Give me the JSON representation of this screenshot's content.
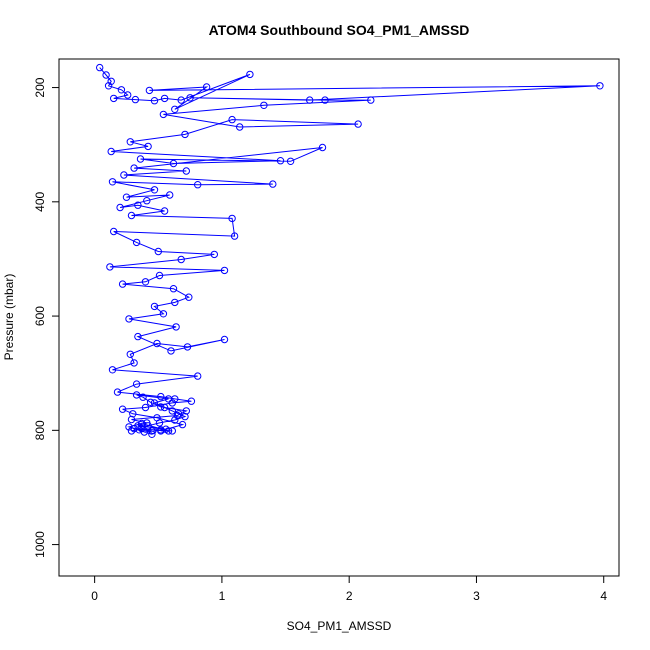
{
  "chart_data": {
    "type": "line",
    "title": "ATOM4 Southbound SO4_PM1_AMSSD",
    "xlabel": "SO4_PM1_AMSSD",
    "ylabel": "Pressure (mbar)",
    "xlim": [
      -0.28,
      4.12
    ],
    "ylim": [
      1055,
      150
    ],
    "y_reversed": true,
    "x_ticks": [
      0,
      1,
      2,
      3,
      4
    ],
    "y_ticks": [
      200,
      400,
      600,
      800,
      1000
    ],
    "grid": false,
    "color": "#0000ff",
    "marker": "open-circle",
    "series": [
      {
        "x": [
          0.04,
          0.09,
          0.13,
          0.11,
          0.21,
          0.26,
          0.15,
          0.32,
          0.47,
          0.55,
          0.68,
          1.22,
          0.63,
          0.88,
          0.43,
          3.97,
          1.69,
          0.75,
          1.81,
          2.17,
          1.33,
          0.54,
          1.14,
          2.07,
          1.08,
          0.71,
          0.28,
          0.42,
          0.13,
          1.46,
          0.62,
          0.36,
          1.54,
          1.79,
          0.31,
          0.72,
          0.23,
          1.4,
          0.81,
          0.14,
          0.47,
          0.25,
          0.59,
          0.41,
          0.2,
          0.34,
          0.55,
          0.29,
          1.08,
          1.1,
          0.15,
          0.33,
          0.5,
          0.94,
          0.68,
          0.12,
          1.02,
          0.51,
          0.4,
          0.22,
          0.62,
          0.74,
          0.63,
          0.47,
          0.54,
          0.27,
          0.64,
          0.34,
          0.6,
          1.02,
          0.73,
          0.49,
          0.28,
          0.31,
          0.14,
          0.81,
          0.33,
          0.18,
          0.52,
          0.63,
          0.76,
          0.61,
          0.4,
          0.22,
          0.3,
          0.49,
          0.69,
          0.52,
          0.58,
          0.37,
          0.27,
          0.35,
          0.45,
          0.39,
          0.45,
          0.31,
          0.61,
          0.46,
          0.52,
          0.56,
          0.34,
          0.41,
          0.29,
          0.65,
          0.72,
          0.52,
          0.44,
          0.38,
          0.33,
          0.58,
          0.47,
          0.55,
          0.61,
          0.66,
          0.71,
          0.63,
          0.51,
          0.42,
          0.37,
          0.29
        ],
        "y": [
          165,
          178,
          189,
          197,
          204,
          213,
          219,
          221,
          223,
          219,
          222,
          177,
          238,
          199,
          205,
          197,
          222,
          218,
          222,
          222,
          231,
          247,
          269,
          264,
          256,
          282,
          295,
          303,
          312,
          328,
          333,
          325,
          329,
          305,
          341,
          346,
          353,
          369,
          370,
          365,
          379,
          392,
          388,
          398,
          410,
          406,
          416,
          424,
          429,
          460,
          452,
          471,
          487,
          492,
          501,
          514,
          520,
          529,
          540,
          544,
          552,
          567,
          576,
          583,
          596,
          605,
          619,
          636,
          661,
          641,
          654,
          648,
          667,
          682,
          694,
          705,
          719,
          733,
          741,
          745,
          749,
          752,
          760,
          763,
          771,
          778,
          790,
          801,
          801,
          788,
          794,
          799,
          801,
          803,
          807,
          797,
          801,
          800,
          799,
          798,
          792,
          787,
          781,
          774,
          766,
          759,
          751,
          742,
          738,
          745,
          752,
          760,
          766,
          771,
          776,
          782,
          787,
          792,
          797,
          801
        ]
      }
    ]
  }
}
